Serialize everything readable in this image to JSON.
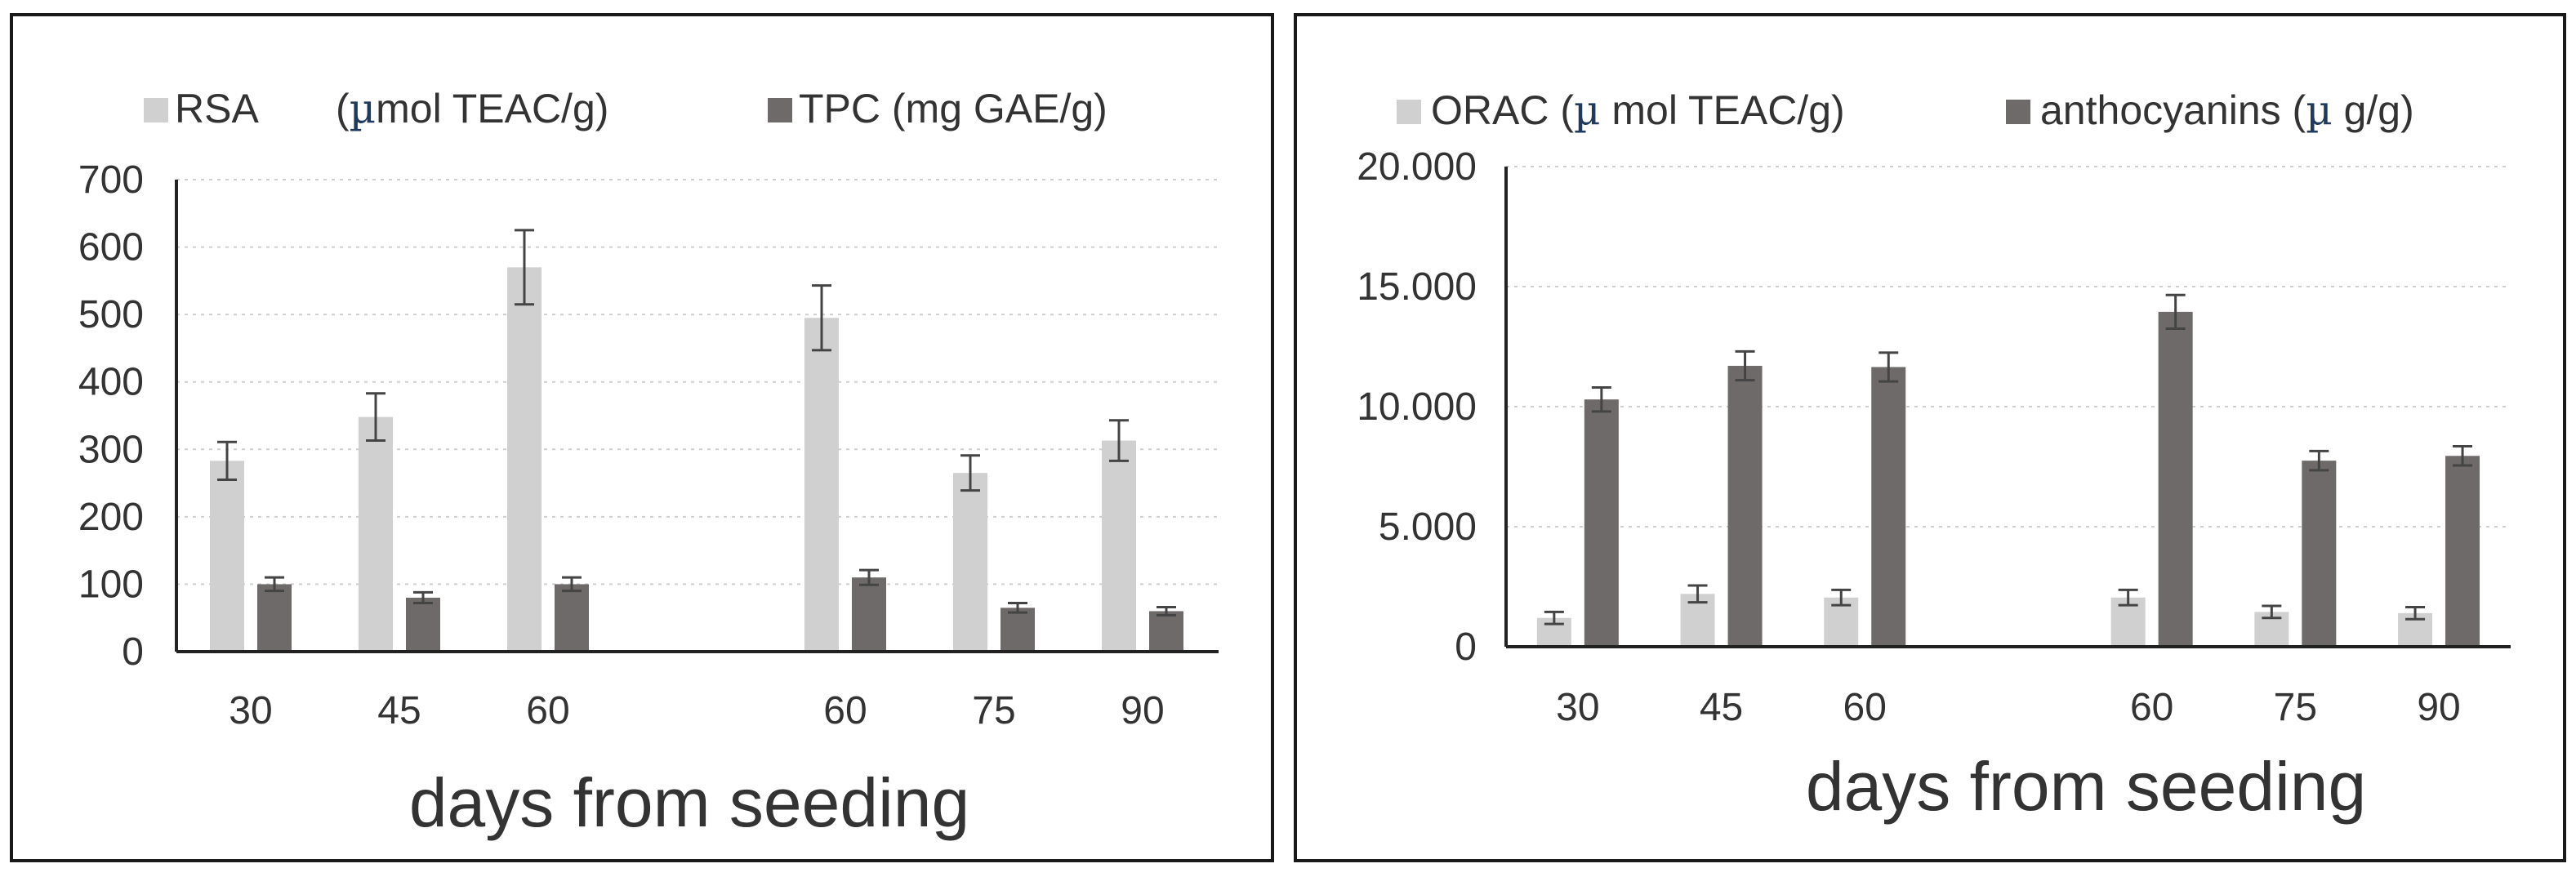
{
  "charts": [
    {
      "id": "left",
      "type": "bar",
      "categories": [
        "30",
        "45",
        "60",
        "",
        "60",
        "75",
        "90"
      ],
      "xlabel": "days from seeding",
      "ylim": [
        0,
        700
      ],
      "yticks": [
        "0",
        "100",
        "200",
        "300",
        "400",
        "500",
        "600",
        "700"
      ],
      "grid": true,
      "legend_position": "top",
      "series": [
        {
          "name_parts": [
            "RSA",
            "(",
            "µ",
            "mol TEAC/g)"
          ],
          "color": "#d0d0d0",
          "values": [
            283,
            348,
            570,
            null,
            495,
            265,
            313
          ],
          "errors": [
            28,
            35,
            55,
            null,
            48,
            26,
            30
          ]
        },
        {
          "name_parts": [
            "TPC (mg  GAE/g)"
          ],
          "color": "#6e6a69",
          "values": [
            100,
            80,
            100,
            null,
            110,
            65,
            60
          ],
          "errors": [
            10,
            8,
            10,
            null,
            11,
            7,
            6
          ]
        }
      ]
    },
    {
      "id": "right",
      "type": "bar",
      "categories": [
        "30",
        "45",
        "60",
        "",
        "60",
        "75",
        "90"
      ],
      "xlabel": "days from seeding",
      "ylim": [
        0,
        20000
      ],
      "yticks": [
        "0",
        "5.000",
        "10.000",
        "15.000",
        "20.000"
      ],
      "grid": true,
      "legend_position": "top",
      "series": [
        {
          "name_parts": [
            "ORAC (",
            "µ",
            " mol TEAC/g)"
          ],
          "color": "#d0d0d0",
          "values": [
            1200,
            2200,
            2050,
            null,
            2050,
            1450,
            1400
          ],
          "errors": [
            250,
            350,
            320,
            null,
            320,
            250,
            250
          ]
        },
        {
          "name_parts": [
            "anthocyanins (",
            "µ",
            " g/g)"
          ],
          "color": "#6e6a69",
          "values": [
            10300,
            11700,
            11650,
            null,
            13950,
            7750,
            7950
          ],
          "errors": [
            500,
            600,
            600,
            null,
            700,
            400,
            400
          ]
        }
      ]
    }
  ],
  "chart_data": [
    {
      "type": "bar",
      "categories": [
        "30",
        "45",
        "60",
        "60",
        "75",
        "90"
      ],
      "xlabel": "days from seeding",
      "ylabel": "",
      "ylim": [
        0,
        700
      ],
      "series": [
        {
          "name": "RSA (µmol TEAC/g)",
          "values": [
            283,
            348,
            570,
            495,
            265,
            313
          ],
          "errors": [
            28,
            35,
            55,
            48,
            26,
            30
          ]
        },
        {
          "name": "TPC (mg GAE/g)",
          "values": [
            100,
            80,
            100,
            110,
            65,
            60
          ],
          "errors": [
            10,
            8,
            10,
            11,
            7,
            6
          ]
        }
      ]
    },
    {
      "type": "bar",
      "categories": [
        "30",
        "45",
        "60",
        "60",
        "75",
        "90"
      ],
      "xlabel": "days from seeding",
      "ylabel": "",
      "ylim": [
        0,
        20000
      ],
      "series": [
        {
          "name": "ORAC (µ mol TEAC/g)",
          "values": [
            1200,
            2200,
            2050,
            2050,
            1450,
            1400
          ],
          "errors": [
            250,
            350,
            320,
            320,
            250,
            250
          ]
        },
        {
          "name": "anthocyanins (µ g/g)",
          "values": [
            10300,
            11700,
            11650,
            13950,
            7750,
            7950
          ],
          "errors": [
            500,
            600,
            600,
            700,
            400,
            400
          ]
        }
      ]
    }
  ]
}
